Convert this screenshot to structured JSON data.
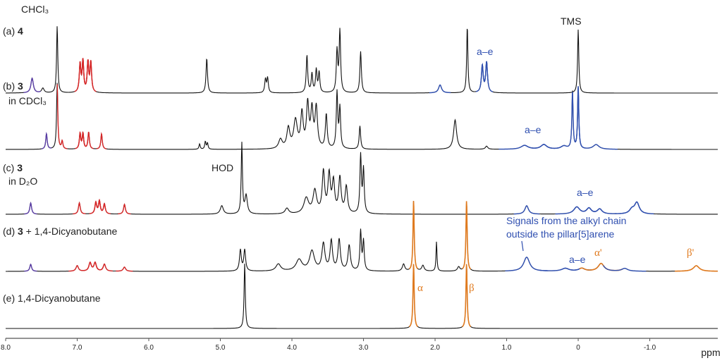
{
  "chart_data": {
    "type": "line",
    "xlabel": "ppm",
    "x_reversed": true,
    "xlim": [
      8.0,
      -1.95
    ],
    "x_ticks": [
      {
        "value": 8.0,
        "label": "8.0"
      },
      {
        "value": 7.0,
        "label": "7.0"
      },
      {
        "value": 6.0,
        "label": "6.0"
      },
      {
        "value": 5.0,
        "label": "5.0"
      },
      {
        "value": 4.0,
        "label": "4.0"
      },
      {
        "value": 3.0,
        "label": "3.0"
      },
      {
        "value": 2.0,
        "label": "2.0"
      },
      {
        "value": 1.0,
        "label": "1.0"
      },
      {
        "value": 0.0,
        "label": "0"
      },
      {
        "value": -1.0,
        "label": "-1.0"
      }
    ],
    "colors": {
      "black": "#111111",
      "red": "#d62728",
      "blue": "#2f4fb0",
      "purple": "#5b3fa6",
      "orange": "#e07a1e"
    },
    "spectra": [
      {
        "label_prefix": "(a) ",
        "label_bold": "4",
        "label_suffix": "",
        "second_line": "",
        "peaks": [
          [
            7.28,
            1.0,
            0.01,
            "black"
          ],
          [
            7.48,
            0.07,
            0.02,
            "black"
          ],
          [
            7.63,
            0.22,
            0.02,
            "purple"
          ],
          [
            6.96,
            0.42,
            0.013,
            "red"
          ],
          [
            6.92,
            0.46,
            0.013,
            "red"
          ],
          [
            6.85,
            0.44,
            0.013,
            "red"
          ],
          [
            6.81,
            0.44,
            0.013,
            "red"
          ],
          [
            5.19,
            0.52,
            0.012,
            "black"
          ],
          [
            4.37,
            0.2,
            0.012,
            "black"
          ],
          [
            4.34,
            0.22,
            0.012,
            "black"
          ],
          [
            3.79,
            0.56,
            0.012,
            "black"
          ],
          [
            3.72,
            0.28,
            0.012,
            "black"
          ],
          [
            3.66,
            0.34,
            0.012,
            "black"
          ],
          [
            3.62,
            0.3,
            0.012,
            "black"
          ],
          [
            3.37,
            0.62,
            0.012,
            "black"
          ],
          [
            3.33,
            0.92,
            0.012,
            "black"
          ],
          [
            3.04,
            0.62,
            0.012,
            "black"
          ],
          [
            1.93,
            0.12,
            0.025,
            "blue"
          ],
          [
            1.55,
            1.0,
            0.01,
            "black"
          ],
          [
            1.34,
            0.4,
            0.015,
            "blue"
          ],
          [
            1.28,
            0.45,
            0.015,
            "blue"
          ],
          [
            0.0,
            0.95,
            0.01,
            "black"
          ]
        ]
      },
      {
        "label_prefix": "(b) ",
        "label_bold": "3",
        "label_suffix": "",
        "second_line": "in CDCl₃",
        "peaks": [
          [
            7.28,
            0.86,
            0.01,
            "black"
          ],
          [
            7.43,
            0.2,
            0.012,
            "purple"
          ],
          [
            7.21,
            0.1,
            0.012,
            "red"
          ],
          [
            6.96,
            0.2,
            0.012,
            "red"
          ],
          [
            6.92,
            0.2,
            0.012,
            "red"
          ],
          [
            6.84,
            0.22,
            0.012,
            "red"
          ],
          [
            6.66,
            0.2,
            0.012,
            "red"
          ],
          [
            5.29,
            0.07,
            0.01,
            "black"
          ],
          [
            5.21,
            0.1,
            0.01,
            "black"
          ],
          [
            5.18,
            0.08,
            0.01,
            "black"
          ],
          [
            4.16,
            0.12,
            0.03,
            "black"
          ],
          [
            4.05,
            0.26,
            0.025,
            "black"
          ],
          [
            3.95,
            0.36,
            0.03,
            "black"
          ],
          [
            3.86,
            0.44,
            0.02,
            "black"
          ],
          [
            3.78,
            0.56,
            0.02,
            "black"
          ],
          [
            3.72,
            0.48,
            0.02,
            "black"
          ],
          [
            3.66,
            0.52,
            0.02,
            "black"
          ],
          [
            3.52,
            0.44,
            0.015,
            "black"
          ],
          [
            3.37,
            0.72,
            0.012,
            "black"
          ],
          [
            3.33,
            0.52,
            0.012,
            "black"
          ],
          [
            3.05,
            0.3,
            0.012,
            "black"
          ],
          [
            1.72,
            0.38,
            0.025,
            "black"
          ],
          [
            1.28,
            0.04,
            0.02,
            "black"
          ],
          [
            0.75,
            0.05,
            0.06,
            "blue"
          ],
          [
            0.48,
            0.06,
            0.05,
            "blue"
          ],
          [
            0.2,
            0.04,
            0.05,
            "blue"
          ],
          [
            -0.25,
            0.06,
            0.05,
            "blue"
          ],
          [
            0.08,
            0.74,
            0.01,
            "black"
          ],
          [
            0.0,
            0.8,
            0.01,
            "black"
          ]
        ]
      },
      {
        "label_prefix": "(c) ",
        "label_bold": "3",
        "label_suffix": "",
        "second_line": "in D₂O",
        "peaks": [
          [
            7.65,
            0.16,
            0.015,
            "purple"
          ],
          [
            6.97,
            0.16,
            0.015,
            "red"
          ],
          [
            6.74,
            0.16,
            0.015,
            "red"
          ],
          [
            6.69,
            0.18,
            0.015,
            "red"
          ],
          [
            6.62,
            0.14,
            0.015,
            "red"
          ],
          [
            6.34,
            0.14,
            0.015,
            "red"
          ],
          [
            4.98,
            0.12,
            0.025,
            "black"
          ],
          [
            4.7,
            1.0,
            0.01,
            "black"
          ],
          [
            4.64,
            0.26,
            0.02,
            "black"
          ],
          [
            4.07,
            0.08,
            0.03,
            "black"
          ],
          [
            3.8,
            0.22,
            0.04,
            "black"
          ],
          [
            3.68,
            0.32,
            0.03,
            "black"
          ],
          [
            3.56,
            0.58,
            0.02,
            "black"
          ],
          [
            3.48,
            0.54,
            0.02,
            "black"
          ],
          [
            3.42,
            0.44,
            0.02,
            "black"
          ],
          [
            3.33,
            0.5,
            0.02,
            "black"
          ],
          [
            3.24,
            0.38,
            0.02,
            "black"
          ],
          [
            3.04,
            0.82,
            0.012,
            "black"
          ],
          [
            3.0,
            0.62,
            0.012,
            "black"
          ],
          [
            0.72,
            0.12,
            0.03,
            "blue"
          ],
          [
            0.02,
            0.1,
            0.05,
            "blue"
          ],
          [
            -0.15,
            0.08,
            0.04,
            "blue"
          ],
          [
            -0.3,
            0.07,
            0.04,
            "blue"
          ],
          [
            -0.75,
            0.06,
            0.04,
            "blue"
          ],
          [
            -0.82,
            0.16,
            0.04,
            "blue"
          ]
        ]
      },
      {
        "label_prefix": "(d) ",
        "label_bold": "3",
        "label_suffix": " + 1,4-Dicyanobutane",
        "second_line": "",
        "peaks": [
          [
            7.65,
            0.1,
            0.015,
            "purple"
          ],
          [
            6.82,
            0.12,
            0.02,
            "red"
          ],
          [
            6.75,
            0.12,
            0.02,
            "red"
          ],
          [
            6.62,
            0.1,
            0.02,
            "red"
          ],
          [
            6.34,
            0.06,
            0.02,
            "red"
          ],
          [
            7.0,
            0.08,
            0.02,
            "red"
          ],
          [
            4.72,
            0.3,
            0.015,
            "black"
          ],
          [
            4.66,
            0.3,
            0.015,
            "black"
          ],
          [
            4.19,
            0.1,
            0.04,
            "black"
          ],
          [
            3.9,
            0.16,
            0.05,
            "black"
          ],
          [
            3.72,
            0.28,
            0.04,
            "black"
          ],
          [
            3.56,
            0.38,
            0.025,
            "black"
          ],
          [
            3.45,
            0.42,
            0.02,
            "black"
          ],
          [
            3.34,
            0.44,
            0.02,
            "black"
          ],
          [
            3.2,
            0.36,
            0.02,
            "black"
          ],
          [
            3.04,
            0.56,
            0.012,
            "black"
          ],
          [
            3.0,
            0.42,
            0.012,
            "black"
          ],
          [
            2.44,
            0.1,
            0.02,
            "black"
          ],
          [
            2.3,
            1.0,
            0.01,
            "orange"
          ],
          [
            2.17,
            0.08,
            0.02,
            "black"
          ],
          [
            1.98,
            0.42,
            0.008,
            "black"
          ],
          [
            1.67,
            0.06,
            0.02,
            "black"
          ],
          [
            1.56,
            1.0,
            0.01,
            "orange"
          ],
          [
            0.72,
            0.2,
            0.05,
            "blue"
          ],
          [
            0.18,
            0.04,
            0.06,
            "blue"
          ],
          [
            -0.05,
            0.04,
            0.05,
            "blue"
          ],
          [
            -0.32,
            0.11,
            0.05,
            "orange"
          ],
          [
            -0.65,
            0.04,
            0.05,
            "blue"
          ],
          [
            -1.65,
            0.08,
            0.05,
            "orange"
          ]
        ]
      },
      {
        "label_prefix": "(e) ",
        "label_bold": "",
        "label_suffix": "1,4-Dicyanobutane",
        "second_line": "",
        "peaks": [
          [
            4.66,
            1.0,
            0.01,
            "black"
          ],
          [
            2.3,
            1.0,
            0.01,
            "orange"
          ],
          [
            1.56,
            1.0,
            0.01,
            "orange"
          ]
        ]
      }
    ],
    "annotations": {
      "chcl3": "CHCl₃",
      "tms": "TMS",
      "hod": "HOD",
      "ae": "a–e",
      "signals_line1": "Signals from the alkyl chain",
      "signals_line2": "outside the pillar[5]arene",
      "alpha": "α",
      "beta": "β",
      "alpha_prime": "α'",
      "beta_prime": "β'"
    }
  }
}
